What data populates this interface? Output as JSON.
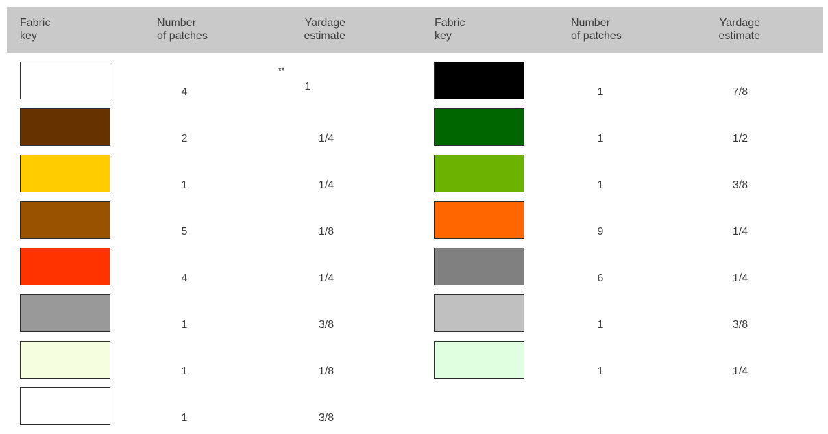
{
  "header": {
    "left": {
      "fabric": [
        "Fabric",
        "key"
      ],
      "patches": [
        "Number",
        "of patches"
      ],
      "yardage": [
        "Yardage",
        "estimate"
      ]
    },
    "right": {
      "fabric": [
        "Fabric",
        "key"
      ],
      "patches": [
        "Number",
        "of patches"
      ],
      "yardage": [
        "Yardage",
        "estimate"
      ]
    }
  },
  "note_mark": "**",
  "left_rows": [
    {
      "color": "#ffffff",
      "patches": "4",
      "yardage": "1"
    },
    {
      "color": "#663300",
      "patches": "2",
      "yardage": "1/4"
    },
    {
      "color": "#ffcc00",
      "patches": "1",
      "yardage": "1/4"
    },
    {
      "color": "#995200",
      "patches": "5",
      "yardage": "1/8"
    },
    {
      "color": "#ff3300",
      "patches": "4",
      "yardage": "1/4"
    },
    {
      "color": "#999999",
      "patches": "1",
      "yardage": "3/8"
    },
    {
      "color": "#f5ffe0",
      "patches": "1",
      "yardage": "1/8"
    },
    {
      "color": "#ffffff",
      "patches": "1",
      "yardage": "3/8"
    }
  ],
  "right_rows": [
    {
      "color": "#000000",
      "patches": "1",
      "yardage": "7/8"
    },
    {
      "color": "#006600",
      "patches": "1",
      "yardage": "1/2"
    },
    {
      "color": "#6bb300",
      "patches": "1",
      "yardage": "3/8"
    },
    {
      "color": "#ff6600",
      "patches": "9",
      "yardage": "1/4"
    },
    {
      "color": "#808080",
      "patches": "6",
      "yardage": "1/4"
    },
    {
      "color": "#c0c0c0",
      "patches": "1",
      "yardage": "3/8"
    },
    {
      "color": "#e0ffe0",
      "patches": "1",
      "yardage": "1/4"
    }
  ]
}
